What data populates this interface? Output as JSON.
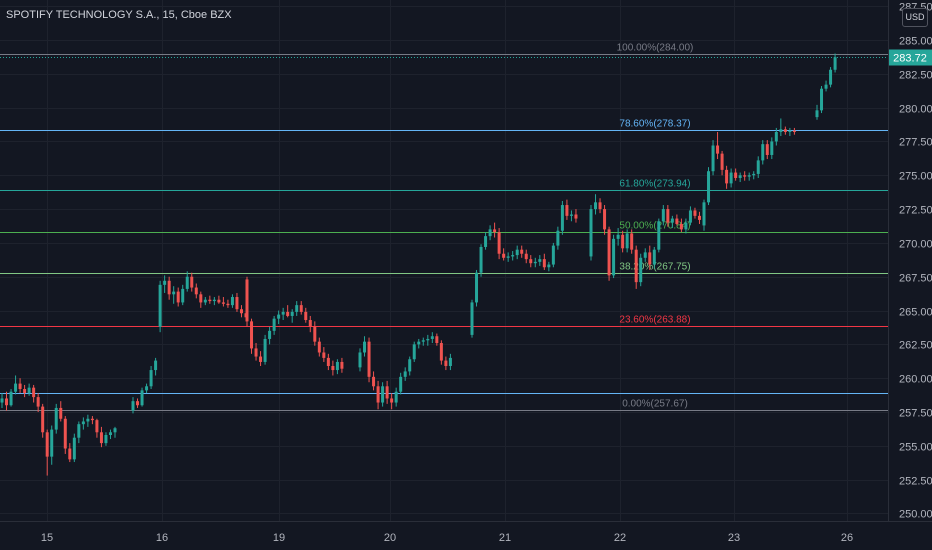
{
  "header": {
    "title": "SPOTIFY TECHNOLOGY S.A., 15, Cboe BZX",
    "currency": "USD"
  },
  "colors": {
    "background": "#131722",
    "grid": "#1e222d",
    "up": "#26a69a",
    "down": "#ef5350",
    "text": "#b2b5be",
    "price_label_bg": "#26a69a"
  },
  "chart_data": {
    "type": "candlestick",
    "title": "SPOTIFY TECHNOLOGY S.A., 15, Cboe BZX",
    "timeframe": "15",
    "exchange": "Cboe BZX",
    "currency": "USD",
    "ylim": [
      249.0,
      287.5
    ],
    "y_ticks": [
      "250.00",
      "252.50",
      "255.00",
      "257.50",
      "260.00",
      "262.50",
      "265.00",
      "267.50",
      "270.00",
      "272.50",
      "275.00",
      "277.50",
      "280.00",
      "282.50",
      "285.00",
      "287.50"
    ],
    "x_ticks": [
      "15",
      "16",
      "19",
      "20",
      "21",
      "22",
      "23",
      "26"
    ],
    "grid": true,
    "last_price": "283.72",
    "fibonacci": [
      {
        "label": "100.00%(284.00)",
        "ratio": "100.00%",
        "price": 284.0,
        "color": "#787b86"
      },
      {
        "label": "78.60%(278.37)",
        "ratio": "78.60%",
        "price": 278.37,
        "color": "#64b5f6"
      },
      {
        "label": "61.80%(273.94)",
        "ratio": "61.80%",
        "price": 273.94,
        "color": "#26a69a"
      },
      {
        "label": "50.00%(270.84)",
        "ratio": "50.00%",
        "price": 270.84,
        "color": "#4caf50"
      },
      {
        "label": "38.20%(267.75)",
        "ratio": "38.20%",
        "price": 267.75,
        "color": "#81c784"
      },
      {
        "label": "23.60%(263.88)",
        "ratio": "23.60%",
        "price": 263.88,
        "color": "#f23645"
      },
      {
        "label": "0.00%(257.67)",
        "ratio": "0.00%",
        "price": 257.67,
        "color": "#787b86"
      }
    ],
    "extra_levels": [
      {
        "price": 258.9,
        "color": "#64b5f6"
      }
    ],
    "sessions": [
      {
        "label": "15",
        "candles": [
          [
            258.2,
            258.9,
            257.8,
            258.5
          ],
          [
            258.5,
            259.0,
            257.6,
            258.0
          ],
          [
            258.0,
            259.2,
            257.9,
            259.0
          ],
          [
            259.0,
            260.2,
            258.8,
            259.6
          ],
          [
            259.6,
            260.0,
            258.9,
            259.2
          ],
          [
            259.2,
            259.5,
            258.6,
            258.9
          ],
          [
            258.9,
            259.6,
            258.7,
            259.3
          ],
          [
            259.3,
            259.5,
            258.2,
            258.6
          ],
          [
            258.6,
            258.9,
            257.5,
            257.9
          ],
          [
            257.9,
            258.1,
            255.6,
            256.0
          ],
          [
            256.0,
            256.2,
            252.8,
            254.2
          ],
          [
            254.2,
            256.5,
            253.6,
            256.2
          ],
          [
            256.2,
            258.1,
            255.9,
            257.8
          ],
          [
            257.8,
            258.3,
            256.8,
            257.0
          ],
          [
            257.0,
            257.2,
            254.4,
            254.8
          ],
          [
            254.8,
            255.2,
            253.8,
            254.0
          ],
          [
            254.0,
            255.9,
            253.8,
            255.6
          ],
          [
            255.6,
            256.8,
            255.2,
            256.6
          ],
          [
            256.6,
            257.1,
            256.2,
            256.8
          ],
          [
            256.8,
            257.3,
            256.4,
            257.0
          ],
          [
            257.0,
            257.2,
            256.6,
            256.9
          ],
          [
            256.9,
            257.0,
            255.6,
            256.0
          ],
          [
            256.0,
            256.4,
            254.9,
            255.2
          ],
          [
            255.2,
            256.0,
            255.0,
            255.8
          ],
          [
            255.8,
            256.2,
            255.5,
            256.0
          ],
          [
            256.0,
            256.4,
            255.6,
            256.3
          ]
        ]
      },
      {
        "label": "16",
        "candles": [
          [
            257.6,
            258.6,
            257.4,
            258.3
          ],
          [
            258.3,
            258.5,
            257.8,
            258.0
          ],
          [
            258.0,
            259.3,
            257.9,
            259.1
          ],
          [
            259.1,
            259.6,
            258.9,
            259.4
          ],
          [
            259.4,
            260.9,
            259.2,
            260.6
          ],
          [
            260.6,
            261.5,
            260.2,
            261.3
          ],
          [
            263.8,
            267.2,
            263.4,
            266.9
          ],
          [
            266.9,
            267.6,
            266.3,
            267.2
          ],
          [
            267.2,
            267.5,
            265.8,
            266.2
          ],
          [
            266.2,
            266.8,
            265.5,
            266.4
          ],
          [
            266.4,
            266.7,
            265.3,
            265.6
          ],
          [
            265.6,
            266.9,
            265.4,
            266.6
          ],
          [
            266.6,
            267.9,
            266.4,
            267.5
          ],
          [
            267.5,
            267.8,
            266.4,
            266.7
          ],
          [
            266.7,
            267.0,
            265.9,
            266.2
          ],
          [
            266.2,
            266.4,
            265.2,
            265.6
          ],
          [
            265.6,
            266.0,
            265.4,
            265.8
          ],
          [
            265.8,
            266.1,
            265.5,
            265.7
          ],
          [
            265.7,
            266.0,
            265.4,
            265.8
          ],
          [
            265.8,
            266.1,
            265.5,
            265.6
          ],
          [
            265.6,
            266.0,
            265.3,
            265.5
          ],
          [
            265.5,
            265.8,
            265.2,
            265.4
          ],
          [
            265.4,
            266.2,
            265.2,
            266.0
          ],
          [
            266.0,
            266.3,
            264.9,
            265.1
          ],
          [
            265.1,
            265.4,
            264.5,
            264.8
          ],
          [
            264.8,
            265.0,
            264.2,
            264.5
          ]
        ]
      },
      {
        "label": "19",
        "candles": [
          [
            267.3,
            267.5,
            263.8,
            264.2
          ],
          [
            264.2,
            264.4,
            261.8,
            262.2
          ],
          [
            262.2,
            262.6,
            261.3,
            261.6
          ],
          [
            261.6,
            262.0,
            260.9,
            261.2
          ],
          [
            261.2,
            263.2,
            261.0,
            262.9
          ],
          [
            262.9,
            263.8,
            262.5,
            263.5
          ],
          [
            263.5,
            264.6,
            263.2,
            264.4
          ],
          [
            264.4,
            265.0,
            264.0,
            264.7
          ],
          [
            264.7,
            265.2,
            264.3,
            264.9
          ],
          [
            264.9,
            265.4,
            264.5,
            264.6
          ],
          [
            264.6,
            265.1,
            264.1,
            264.9
          ],
          [
            264.9,
            265.7,
            264.6,
            265.4
          ],
          [
            265.4,
            265.7,
            264.7,
            264.9
          ],
          [
            264.9,
            265.2,
            264.1,
            264.3
          ],
          [
            264.3,
            264.6,
            263.4,
            263.8
          ],
          [
            263.8,
            264.2,
            262.4,
            262.7
          ],
          [
            262.7,
            263.0,
            261.6,
            261.9
          ],
          [
            261.9,
            262.3,
            261.2,
            261.5
          ],
          [
            261.5,
            261.8,
            260.6,
            260.9
          ],
          [
            260.9,
            261.3,
            260.2,
            260.6
          ],
          [
            260.6,
            261.4,
            260.3,
            261.2
          ],
          [
            261.2,
            261.5,
            260.4,
            260.7
          ]
        ]
      },
      {
        "label": "20",
        "candles": [
          [
            260.8,
            262.2,
            260.5,
            261.9
          ],
          [
            261.9,
            263.1,
            261.6,
            262.7
          ],
          [
            262.7,
            263.0,
            259.7,
            260.1
          ],
          [
            260.1,
            260.5,
            259.1,
            259.4
          ],
          [
            259.4,
            259.8,
            257.7,
            258.2
          ],
          [
            258.2,
            259.7,
            257.9,
            259.4
          ],
          [
            259.4,
            259.8,
            258.1,
            258.5
          ],
          [
            258.5,
            258.9,
            257.7,
            258.2
          ],
          [
            258.2,
            259.3,
            257.9,
            259.0
          ],
          [
            259.0,
            260.4,
            258.8,
            260.1
          ],
          [
            260.1,
            260.8,
            259.8,
            260.5
          ],
          [
            260.5,
            261.6,
            260.2,
            261.4
          ],
          [
            261.4,
            262.7,
            261.2,
            262.5
          ],
          [
            262.5,
            262.9,
            262.2,
            262.7
          ],
          [
            262.7,
            263.0,
            262.4,
            262.8
          ],
          [
            262.8,
            263.2,
            262.4,
            262.9
          ],
          [
            262.9,
            263.4,
            262.6,
            263.1
          ],
          [
            263.1,
            263.3,
            262.4,
            262.6
          ],
          [
            262.6,
            262.8,
            261.0,
            261.3
          ],
          [
            261.3,
            261.6,
            260.6,
            260.9
          ],
          [
            260.9,
            261.8,
            260.6,
            261.5
          ]
        ]
      },
      {
        "label": "21",
        "candles": [
          [
            263.2,
            265.8,
            263.0,
            265.6
          ],
          [
            265.6,
            268.0,
            265.3,
            267.8
          ],
          [
            267.8,
            269.9,
            267.5,
            269.7
          ],
          [
            269.7,
            270.8,
            269.5,
            270.5
          ],
          [
            270.5,
            271.3,
            270.2,
            271.0
          ],
          [
            271.0,
            271.5,
            270.4,
            270.8
          ],
          [
            270.8,
            271.1,
            268.8,
            269.2
          ],
          [
            269.2,
            269.6,
            268.7,
            268.9
          ],
          [
            268.9,
            269.3,
            268.6,
            269.0
          ],
          [
            269.0,
            269.4,
            268.7,
            269.1
          ],
          [
            269.1,
            269.8,
            268.8,
            269.5
          ],
          [
            269.5,
            269.8,
            268.9,
            269.2
          ],
          [
            269.2,
            269.5,
            268.5,
            268.8
          ],
          [
            268.8,
            269.1,
            268.2,
            268.5
          ],
          [
            268.5,
            268.9,
            268.2,
            268.6
          ],
          [
            268.6,
            269.1,
            268.3,
            268.8
          ],
          [
            268.8,
            269.2,
            268.0,
            268.2
          ],
          [
            268.2,
            268.6,
            267.9,
            268.4
          ],
          [
            268.4,
            270.0,
            268.2,
            269.8
          ],
          [
            269.8,
            271.2,
            269.5,
            270.9
          ],
          [
            270.9,
            273.1,
            270.6,
            272.8
          ],
          [
            272.8,
            273.2,
            271.7,
            272.0
          ],
          [
            272.0,
            272.4,
            271.6,
            272.1
          ],
          [
            272.1,
            272.5,
            271.5,
            271.8
          ]
        ]
      },
      {
        "label": "22",
        "candles": [
          [
            269.0,
            272.8,
            268.7,
            272.5
          ],
          [
            272.5,
            273.6,
            272.1,
            273.0
          ],
          [
            273.0,
            273.3,
            272.2,
            272.5
          ],
          [
            272.5,
            272.8,
            270.6,
            271.0
          ],
          [
            271.0,
            271.2,
            267.2,
            267.6
          ],
          [
            267.6,
            270.6,
            267.4,
            270.3
          ],
          [
            270.3,
            271.1,
            269.8,
            270.6
          ],
          [
            270.6,
            270.9,
            269.3,
            269.6
          ],
          [
            269.6,
            271.0,
            269.3,
            270.7
          ],
          [
            270.7,
            271.0,
            269.2,
            269.5
          ],
          [
            269.5,
            269.8,
            266.6,
            267.1
          ],
          [
            267.1,
            269.2,
            266.8,
            268.9
          ],
          [
            268.9,
            269.6,
            268.6,
            269.3
          ],
          [
            269.3,
            269.8,
            268.0,
            268.4
          ],
          [
            268.4,
            269.7,
            268.1,
            269.5
          ],
          [
            269.5,
            271.8,
            269.3,
            271.6
          ],
          [
            271.6,
            272.8,
            271.3,
            272.5
          ],
          [
            272.5,
            272.8,
            271.2,
            271.5
          ],
          [
            271.5,
            272.0,
            271.1,
            271.8
          ],
          [
            271.8,
            272.1,
            271.3,
            271.4
          ],
          [
            271.4,
            271.8,
            270.8,
            271.0
          ],
          [
            271.0,
            271.8,
            270.7,
            271.5
          ],
          [
            271.5,
            272.7,
            271.3,
            272.4
          ],
          [
            272.4,
            272.6,
            271.8,
            272.0
          ],
          [
            272.0,
            272.3,
            271.4,
            271.7
          ],
          [
            271.7,
            272.0,
            271.1,
            271.3
          ]
        ]
      },
      {
        "label": "23",
        "candles": [
          [
            271.3,
            273.2,
            270.9,
            273.0
          ],
          [
            273.0,
            275.6,
            272.8,
            275.3
          ],
          [
            275.3,
            277.6,
            275.0,
            277.2
          ],
          [
            277.2,
            278.2,
            276.2,
            276.6
          ],
          [
            276.6,
            276.8,
            275.0,
            275.4
          ],
          [
            275.4,
            275.7,
            274.0,
            274.4
          ],
          [
            274.4,
            275.5,
            274.1,
            275.2
          ],
          [
            275.2,
            275.5,
            274.6,
            274.8
          ],
          [
            274.8,
            275.2,
            274.5,
            275.0
          ],
          [
            275.0,
            275.3,
            274.6,
            274.9
          ],
          [
            274.9,
            275.2,
            274.6,
            275.0
          ],
          [
            275.0,
            275.3,
            274.7,
            275.1
          ],
          [
            275.1,
            276.4,
            274.8,
            276.1
          ],
          [
            276.1,
            277.6,
            275.8,
            277.3
          ],
          [
            277.3,
            277.6,
            276.2,
            276.5
          ],
          [
            276.5,
            277.8,
            276.2,
            277.5
          ],
          [
            277.5,
            278.5,
            277.2,
            278.2
          ],
          [
            278.2,
            279.2,
            277.9,
            278.4
          ],
          [
            278.4,
            278.6,
            278.0,
            278.2
          ],
          [
            278.2,
            278.5,
            277.9,
            278.3
          ],
          [
            278.3,
            278.5,
            278.0,
            278.2
          ]
        ]
      },
      {
        "label": "26",
        "candles": [
          [
            279.3,
            280.2,
            279.1,
            279.8
          ],
          [
            279.8,
            281.6,
            279.6,
            281.4
          ],
          [
            281.4,
            282.0,
            281.2,
            281.7
          ],
          [
            281.7,
            283.0,
            281.5,
            282.8
          ],
          [
            282.8,
            284.0,
            282.6,
            283.72
          ]
        ]
      }
    ]
  }
}
